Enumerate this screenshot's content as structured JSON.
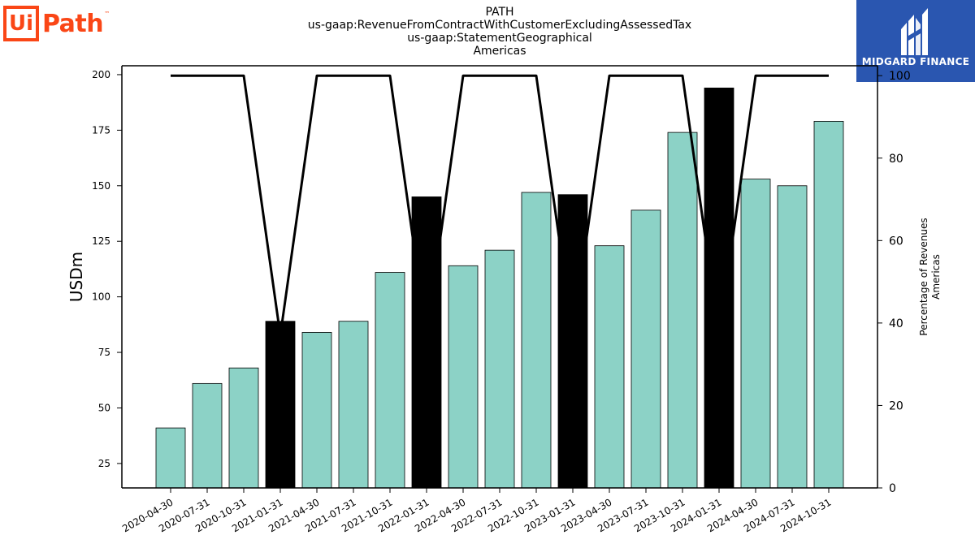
{
  "title_lines": [
    "PATH",
    "us-gaap:RevenueFromContractWithCustomerExcludingAssessedTax",
    "us-gaap:StatementGeographical",
    "Americas"
  ],
  "logos": {
    "left": {
      "ui": "Ui",
      "path": "Path",
      "tm": "™"
    },
    "right": {
      "brand": "MIDGARD FINANCE"
    }
  },
  "colors": {
    "bar_normal": "#8cd2c6",
    "bar_highlight": "#000000",
    "line": "#000000",
    "logo_orange": "#fa4616",
    "logo_blue": "#2a56b0"
  },
  "chart_data": {
    "type": "bar",
    "categories": [
      "2020-04-30",
      "2020-07-31",
      "2020-10-31",
      "2021-01-31",
      "2021-04-30",
      "2021-07-31",
      "2021-10-31",
      "2022-01-31",
      "2022-04-30",
      "2022-07-31",
      "2022-10-31",
      "2023-01-31",
      "2023-04-30",
      "2023-07-31",
      "2023-10-31",
      "2024-01-31",
      "2024-04-30",
      "2024-07-31",
      "2024-10-31"
    ],
    "values": [
      41,
      61,
      68,
      89,
      84,
      89,
      111,
      145,
      114,
      121,
      147,
      146,
      123,
      139,
      174,
      194,
      153,
      150,
      179
    ],
    "highlight": [
      false,
      false,
      false,
      true,
      false,
      false,
      false,
      true,
      false,
      false,
      false,
      true,
      false,
      false,
      false,
      true,
      false,
      false,
      false
    ],
    "line_values": [
      100,
      100,
      100,
      37,
      100,
      100,
      100,
      37,
      100,
      100,
      100,
      37,
      100,
      100,
      100,
      37,
      100,
      100,
      100
    ],
    "ylabel": "USDm",
    "y2label_lines": [
      "Percentage of Revenues",
      "Americas"
    ],
    "ylim": [
      14,
      204
    ],
    "yticks": [
      25,
      50,
      75,
      100,
      125,
      150,
      175,
      200
    ],
    "y2lim": [
      0,
      102.4
    ],
    "y2ticks": [
      0,
      20,
      40,
      60,
      80,
      100
    ],
    "grid": false,
    "legend": "none"
  }
}
